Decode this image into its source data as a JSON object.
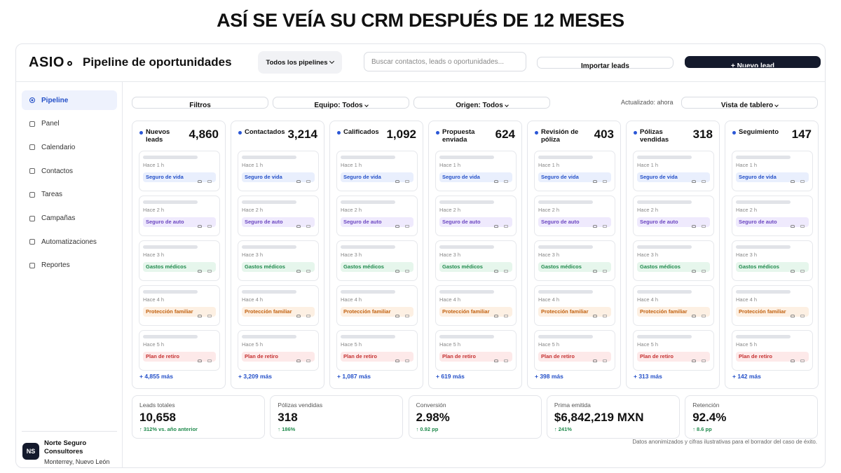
{
  "headline": "ASÍ SE VEÍA SU CRM DESPUÉS DE 12 MESES",
  "header": {
    "logo": "ASIO",
    "page_title": "Pipeline de oportunidades",
    "pipeline_select": "Todos los pipelines",
    "search_placeholder": "Buscar contactos, leads o oportunidades...",
    "import_button": "Importar leads",
    "new_button": "+ Nuevo lead"
  },
  "sidebar": {
    "items": [
      "Pipeline",
      "Panel",
      "Calendario",
      "Contactos",
      "Tareas",
      "Campañas",
      "Automatizaciones",
      "Reportes"
    ],
    "company": {
      "initials": "NS",
      "name": "Norte Seguro Consultores",
      "location": "Monterrey, Nuevo León"
    }
  },
  "toolbar": {
    "filters": "Filtros",
    "team": "Equipo: Todos",
    "origin": "Origen: Todos",
    "updated": "Actualizado: ahora",
    "view": "Vista de tablero"
  },
  "columns": [
    {
      "name": "Nuevos leads",
      "count": "4,860",
      "more": "+ 4,855 más"
    },
    {
      "name": "Contactados",
      "count": "3,214",
      "more": "+ 3,209 más"
    },
    {
      "name": "Calificados",
      "count": "1,092",
      "more": "+ 1,087 más"
    },
    {
      "name": "Propuesta enviada",
      "count": "624",
      "more": "+ 619 más"
    },
    {
      "name": "Revisión de póliza",
      "count": "403",
      "more": "+ 398 más"
    },
    {
      "name": "Pólizas vendidas",
      "count": "318",
      "more": "+ 313 más"
    },
    {
      "name": "Seguimiento",
      "count": "147",
      "more": "+ 142 más"
    }
  ],
  "cards": [
    {
      "time": "Hace 1 h",
      "tag": "Seguro de vida"
    },
    {
      "time": "Hace 2 h",
      "tag": "Seguro de auto"
    },
    {
      "time": "Hace 3 h",
      "tag": "Gastos médicos"
    },
    {
      "time": "Hace 4 h",
      "tag": "Protección familiar"
    },
    {
      "time": "Hace 5 h",
      "tag": "Plan de retiro"
    }
  ],
  "kpis": [
    {
      "label": "Leads totales",
      "value": "10,658",
      "change": "↑ 312% vs. año anterior"
    },
    {
      "label": "Pólizas vendidas",
      "value": "318",
      "change": "↑ 186%"
    },
    {
      "label": "Conversión",
      "value": "2.98%",
      "change": "↑ 0.92 pp"
    },
    {
      "label": "Prima emitida",
      "value": "$6,842,219 MXN",
      "change": "↑ 241%"
    },
    {
      "label": "Retención",
      "value": "92.4%",
      "change": "↑ 8.6 pp"
    }
  ],
  "footnote": "Datos anonimizados y cifras ilustrativas para el borrador del caso de éxito."
}
